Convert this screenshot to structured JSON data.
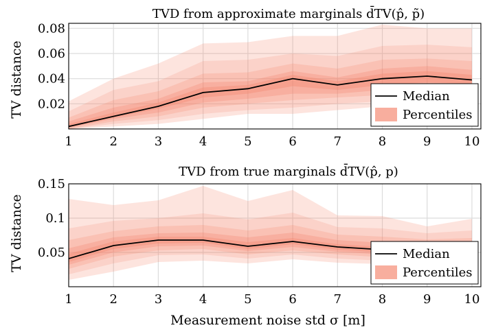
{
  "chart_data": [
    {
      "type": "area",
      "title": "TVD from approximate marginals d̄TV(p̂, p̃)",
      "ylabel": "TV distance",
      "xlabel": "",
      "x": [
        1,
        2,
        3,
        4,
        5,
        6,
        7,
        8,
        9,
        10
      ],
      "xlim": [
        1,
        10.2
      ],
      "ylim": [
        0,
        0.084
      ],
      "yticks": [
        0.02,
        0.04,
        0.06,
        0.08
      ],
      "ytick_labels": [
        "0.02",
        "0.04",
        "0.06",
        "0.08"
      ],
      "grid": true,
      "legend": {
        "position": "lower-right",
        "entries": [
          "Median",
          "Percentiles"
        ]
      },
      "colors": {
        "median": "#000000",
        "band": "#f4826a"
      },
      "median": [
        0.002,
        0.01,
        0.018,
        0.029,
        0.032,
        0.04,
        0.035,
        0.04,
        0.042,
        0.039
      ],
      "bands": [
        {
          "lower": [
            0.0,
            0.002,
            0.004,
            0.008,
            0.012,
            0.012,
            0.015,
            0.018,
            0.018,
            0.022
          ],
          "upper": [
            0.022,
            0.04,
            0.052,
            0.068,
            0.069,
            0.074,
            0.074,
            0.083,
            0.08,
            0.08
          ]
        },
        {
          "lower": [
            0.0,
            0.004,
            0.007,
            0.012,
            0.015,
            0.017,
            0.02,
            0.022,
            0.022,
            0.026
          ],
          "upper": [
            0.014,
            0.031,
            0.038,
            0.054,
            0.055,
            0.06,
            0.058,
            0.066,
            0.067,
            0.065
          ]
        },
        {
          "lower": [
            0.0,
            0.006,
            0.01,
            0.017,
            0.02,
            0.023,
            0.025,
            0.027,
            0.028,
            0.03
          ],
          "upper": [
            0.009,
            0.023,
            0.03,
            0.044,
            0.045,
            0.052,
            0.048,
            0.055,
            0.056,
            0.054
          ]
        },
        {
          "lower": [
            0.001,
            0.008,
            0.013,
            0.021,
            0.024,
            0.028,
            0.028,
            0.031,
            0.033,
            0.033
          ],
          "upper": [
            0.006,
            0.017,
            0.024,
            0.037,
            0.038,
            0.046,
            0.041,
            0.048,
            0.05,
            0.047
          ]
        },
        {
          "lower": [
            0.001,
            0.009,
            0.016,
            0.025,
            0.028,
            0.034,
            0.031,
            0.035,
            0.037,
            0.036
          ],
          "upper": [
            0.004,
            0.013,
            0.021,
            0.033,
            0.035,
            0.043,
            0.038,
            0.044,
            0.046,
            0.043
          ]
        }
      ]
    },
    {
      "type": "area",
      "title": "TVD from true marginals d̄TV(p̂, p)",
      "ylabel": "TV distance",
      "xlabel": "Measurement noise std σ [m]",
      "x": [
        1,
        2,
        3,
        4,
        5,
        6,
        7,
        8,
        9,
        10
      ],
      "xlim": [
        1,
        10.2
      ],
      "ylim": [
        0,
        0.15
      ],
      "yticks": [
        0.05,
        0.1,
        0.15
      ],
      "ytick_labels": [
        "0.05",
        "0.1",
        "0.15"
      ],
      "xticks": [
        1,
        2,
        3,
        4,
        5,
        6,
        7,
        8,
        9,
        10
      ],
      "xtick_labels": [
        "1",
        "2",
        "3",
        "4",
        "5",
        "6",
        "7",
        "8",
        "9",
        "10"
      ],
      "grid": true,
      "legend": {
        "position": "lower-right",
        "entries": [
          "Median",
          "Percentiles"
        ]
      },
      "colors": {
        "median": "#000000",
        "band": "#f4826a"
      },
      "median": [
        0.041,
        0.06,
        0.068,
        0.068,
        0.059,
        0.066,
        0.058,
        0.054,
        0.052,
        0.052
      ],
      "bands": [
        {
          "lower": [
            0.01,
            0.022,
            0.036,
            0.038,
            0.034,
            0.04,
            0.035,
            0.033,
            0.034,
            0.036
          ],
          "upper": [
            0.128,
            0.119,
            0.126,
            0.147,
            0.125,
            0.141,
            0.104,
            0.103,
            0.088,
            0.099
          ]
        },
        {
          "lower": [
            0.018,
            0.034,
            0.046,
            0.047,
            0.041,
            0.047,
            0.041,
            0.038,
            0.038,
            0.04
          ],
          "upper": [
            0.085,
            0.096,
            0.1,
            0.107,
            0.098,
            0.108,
            0.087,
            0.085,
            0.078,
            0.082
          ]
        },
        {
          "lower": [
            0.026,
            0.044,
            0.053,
            0.055,
            0.047,
            0.053,
            0.047,
            0.043,
            0.042,
            0.043
          ],
          "upper": [
            0.068,
            0.081,
            0.088,
            0.09,
            0.082,
            0.09,
            0.076,
            0.073,
            0.069,
            0.071
          ]
        },
        {
          "lower": [
            0.032,
            0.05,
            0.059,
            0.06,
            0.052,
            0.058,
            0.051,
            0.047,
            0.046,
            0.046
          ],
          "upper": [
            0.056,
            0.072,
            0.078,
            0.079,
            0.072,
            0.079,
            0.068,
            0.064,
            0.062,
            0.063
          ]
        },
        {
          "lower": [
            0.036,
            0.055,
            0.063,
            0.064,
            0.055,
            0.062,
            0.054,
            0.05,
            0.049,
            0.049
          ],
          "upper": [
            0.048,
            0.066,
            0.073,
            0.073,
            0.065,
            0.071,
            0.062,
            0.058,
            0.056,
            0.056
          ]
        }
      ]
    }
  ]
}
